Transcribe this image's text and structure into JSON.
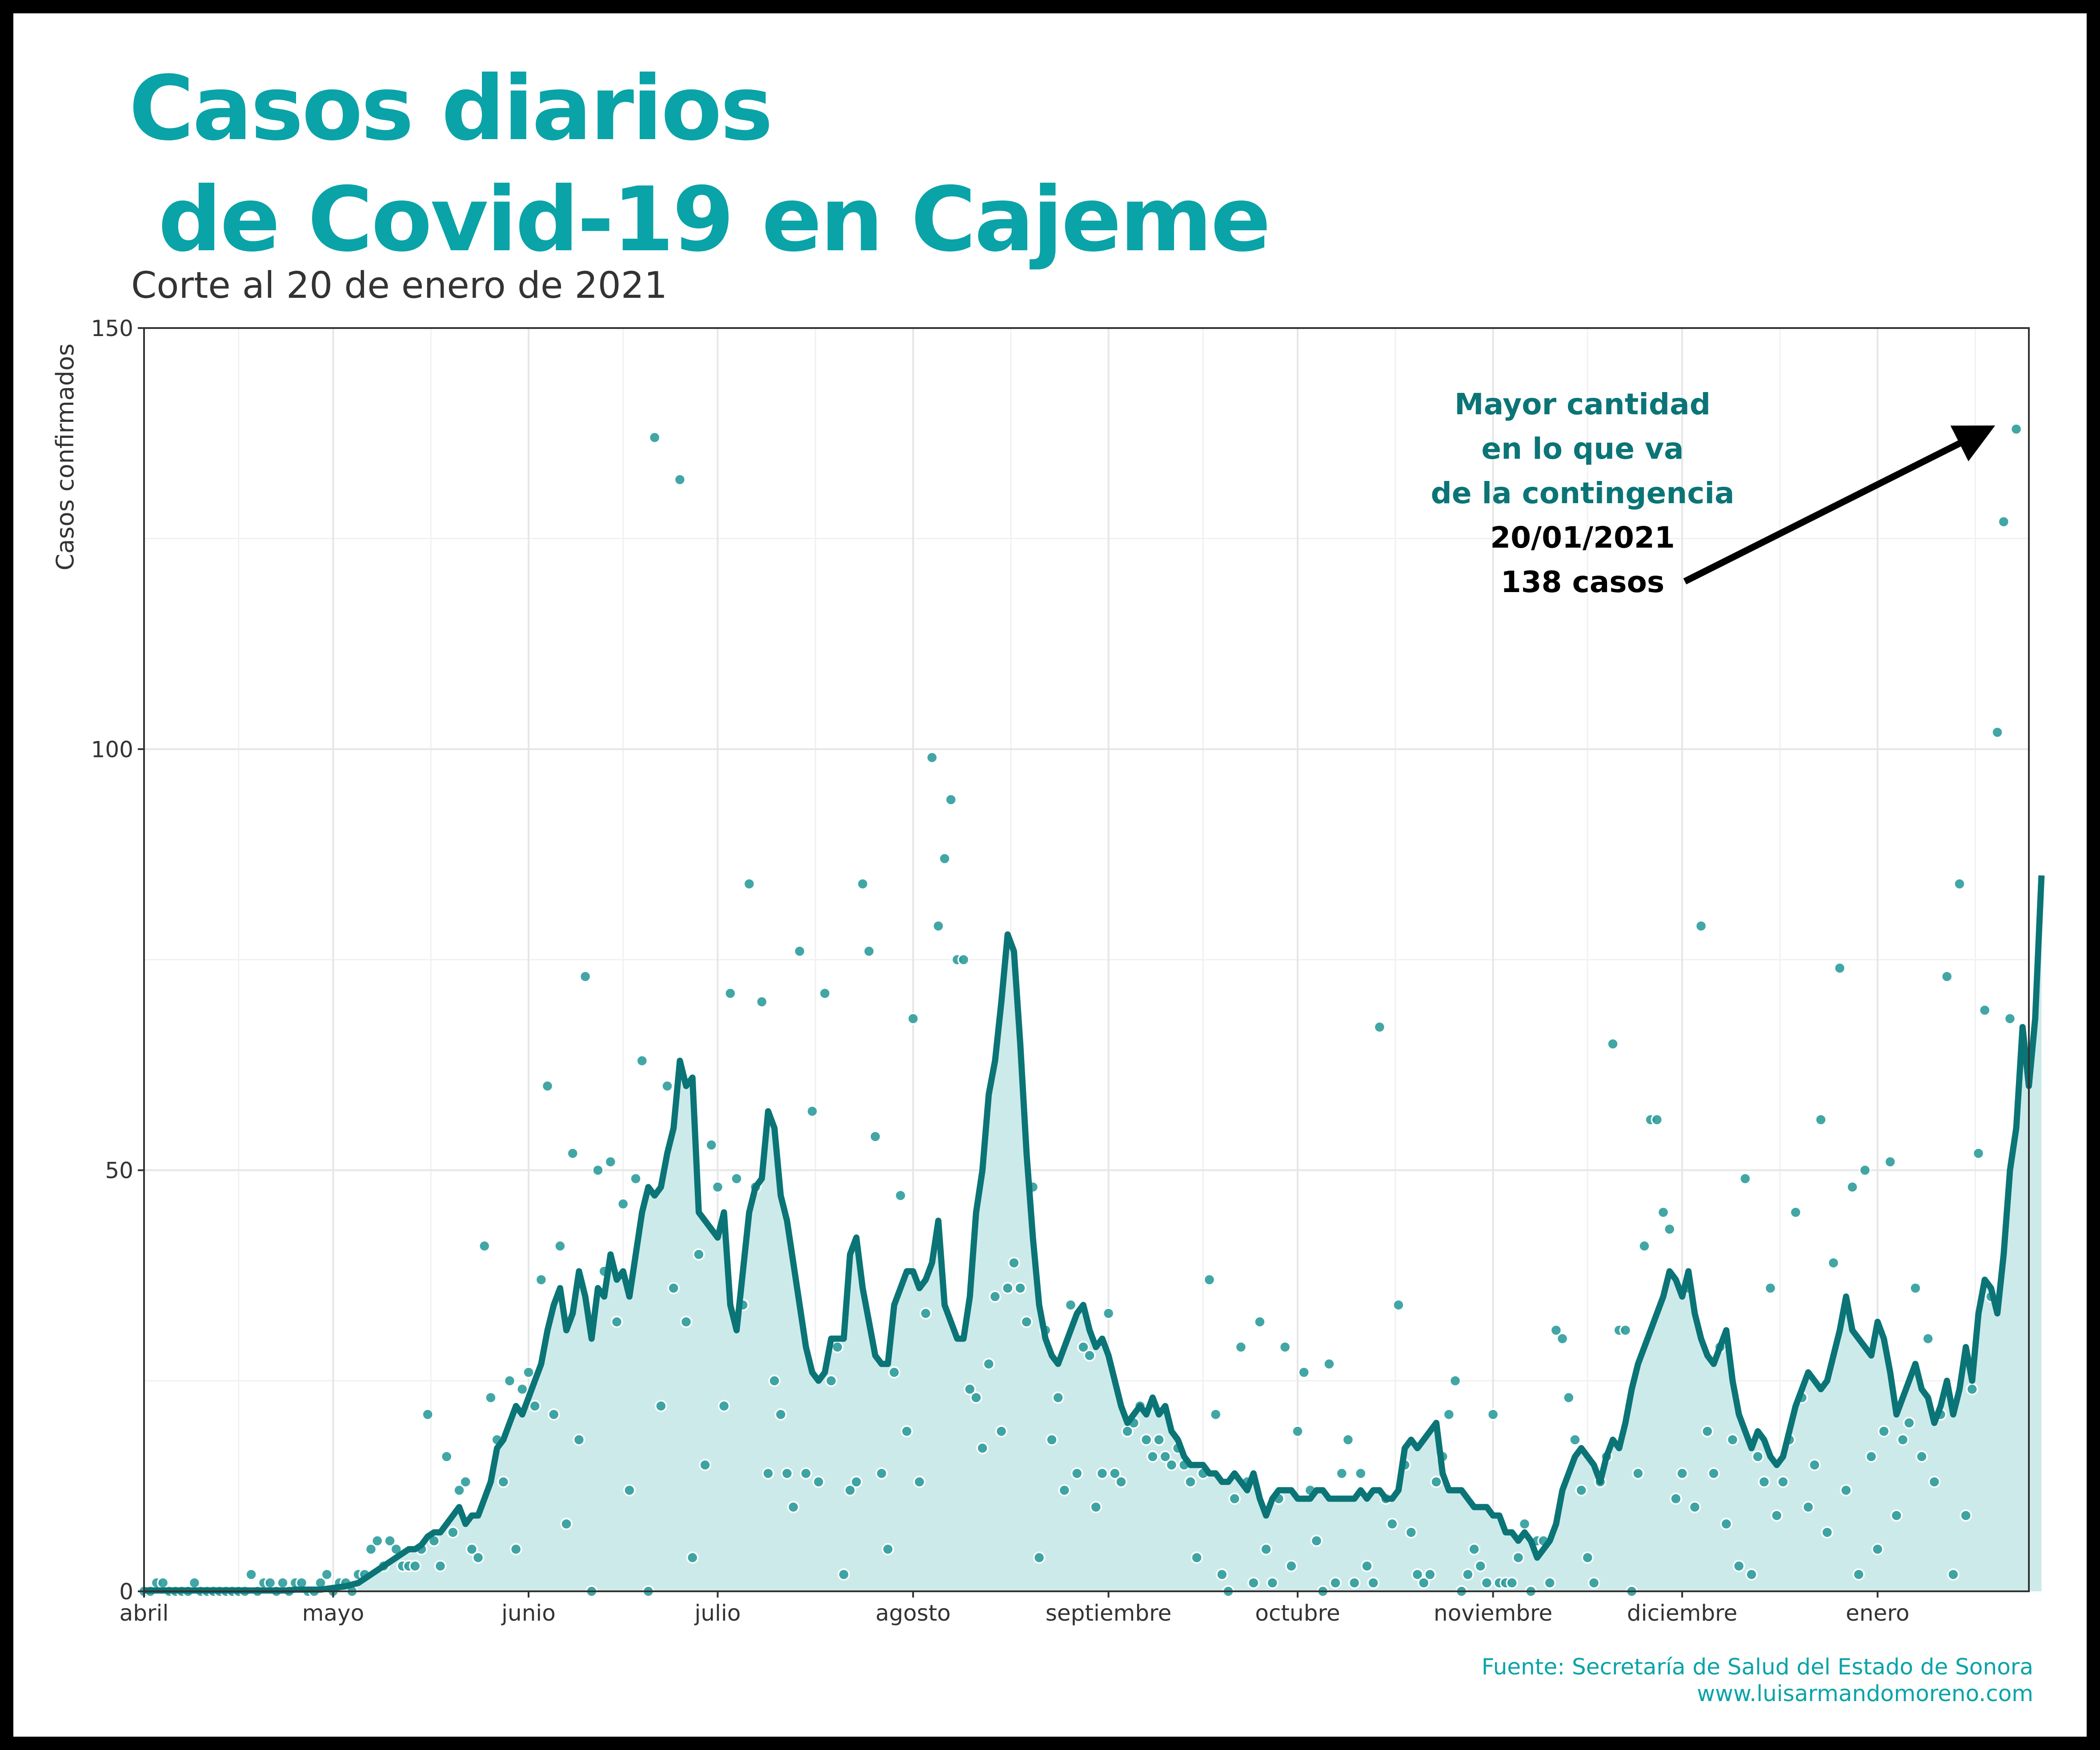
{
  "title": "Casos diarios\n de Covid-19 en Cajeme",
  "subtitle": "Corte al 20 de enero de 2021",
  "source": {
    "line1": "Fuente: Secretaría de Salud del Estado de Sonora",
    "line2": "www.luisarmandomoreno.com"
  },
  "colors": {
    "title": "#0aa3a8",
    "line": "#0b7476",
    "fill": "#cdeaea",
    "points": "#2e9c9c",
    "annotation_teal": "#0b7476",
    "annotation_black": "#000000"
  },
  "chart_data": {
    "type": "line",
    "title": "Casos diarios de Covid-19 en Cajeme",
    "xlabel": "",
    "ylabel": "Casos confirmados",
    "ylim": [
      0,
      150
    ],
    "yticks": [
      0,
      50,
      100,
      150
    ],
    "x_axis_type": "date",
    "xlim": [
      "2020-04-01",
      "2021-01-25"
    ],
    "xticks": [
      {
        "date": "2020-04-01",
        "label": "abril"
      },
      {
        "date": "2020-05-01",
        "label": "mayo"
      },
      {
        "date": "2020-06-01",
        "label": "junio"
      },
      {
        "date": "2020-07-01",
        "label": "julio"
      },
      {
        "date": "2020-08-01",
        "label": "agosto"
      },
      {
        "date": "2020-09-01",
        "label": "septiembre"
      },
      {
        "date": "2020-10-01",
        "label": "octubre"
      },
      {
        "date": "2020-11-01",
        "label": "noviembre"
      },
      {
        "date": "2020-12-01",
        "label": "diciembre"
      },
      {
        "date": "2021-01-01",
        "label": "enero"
      }
    ],
    "grid": true,
    "start_date": "2020-04-01",
    "series": [
      {
        "role": "daily_cases_points",
        "values": [
          0,
          0,
          1,
          1,
          0,
          0,
          0,
          0,
          1,
          0,
          0,
          0,
          0,
          0,
          0,
          0,
          0,
          2,
          0,
          1,
          1,
          0,
          1,
          0,
          1,
          1,
          0,
          0,
          1,
          2,
          0,
          1,
          1,
          0,
          2,
          2,
          5,
          6,
          3,
          6,
          5,
          3,
          3,
          3,
          5,
          21,
          6,
          3,
          16,
          7,
          12,
          13,
          5,
          4,
          41,
          23,
          18,
          13,
          25,
          5,
          24,
          26,
          22,
          37,
          60,
          21,
          41,
          8,
          52,
          18,
          73,
          0,
          50,
          38,
          51,
          32,
          46,
          12,
          49,
          63,
          0,
          137,
          22,
          60,
          36,
          132,
          32,
          4,
          40,
          15,
          53,
          48,
          22,
          71,
          49,
          34,
          84,
          48,
          70,
          14,
          25,
          21,
          14,
          10,
          76,
          14,
          57,
          13,
          71,
          25,
          29,
          2,
          12,
          13,
          84,
          76,
          54,
          14,
          5,
          26,
          47,
          19,
          68,
          13,
          33,
          99,
          79,
          87,
          94,
          75,
          75,
          24,
          23,
          17,
          27,
          35,
          19,
          36,
          39,
          36,
          32,
          48,
          4,
          31,
          18,
          23,
          12,
          34,
          14,
          29,
          28,
          10,
          14,
          33,
          14,
          13,
          19,
          20,
          22,
          18,
          16,
          18,
          16,
          15,
          17,
          15,
          13,
          4,
          14,
          37,
          21,
          2,
          0,
          11,
          29,
          13,
          1,
          32,
          5,
          1,
          11,
          29,
          3,
          19,
          26,
          12,
          6,
          0,
          27,
          1,
          14,
          18,
          1,
          14,
          3,
          1,
          67,
          11,
          8,
          34,
          15,
          7,
          2,
          1,
          2,
          13,
          16,
          21,
          25,
          0,
          2,
          5,
          3,
          1,
          21,
          1,
          1,
          1,
          4,
          8,
          0,
          6,
          6,
          1,
          31,
          30,
          23,
          18,
          12,
          4,
          1,
          13,
          16,
          65,
          31,
          31,
          0,
          14,
          41,
          56,
          56,
          45,
          43,
          11,
          14,
          36,
          10,
          79,
          19,
          14,
          29,
          8,
          18,
          3,
          49,
          2,
          16,
          13,
          36,
          9,
          13,
          18,
          45,
          23,
          10,
          15,
          56,
          7,
          39,
          74,
          12,
          48,
          2,
          50,
          16,
          5,
          19,
          51,
          9,
          18,
          20,
          36,
          16,
          30,
          13,
          21,
          73,
          2,
          84,
          9,
          24,
          52,
          69,
          35,
          102,
          127,
          68,
          138
        ]
      },
      {
        "role": "rolling_average",
        "values": [
          0.1,
          0.1,
          0.1,
          0.1,
          0.1,
          0.1,
          0.1,
          0.1,
          0.1,
          0.1,
          0.1,
          0.1,
          0.1,
          0.1,
          0.1,
          0.1,
          0.1,
          0.1,
          0.1,
          0.1,
          0.1,
          0.1,
          0.1,
          0.1,
          0.2,
          0.2,
          0.2,
          0.2,
          0.2,
          0.3,
          0.4,
          0.5,
          0.6,
          0.8,
          1,
          1.5,
          2,
          2.5,
          3,
          3.5,
          4,
          4.5,
          5,
          5,
          5.5,
          6.5,
          7,
          7,
          8,
          9,
          10,
          8,
          9,
          9,
          11,
          13,
          17,
          18,
          20,
          22,
          21,
          23,
          25,
          27,
          31,
          34,
          36,
          31,
          33,
          38,
          35,
          30,
          36,
          35,
          40,
          37,
          38,
          35,
          40,
          45,
          48,
          47,
          48,
          52,
          55,
          63,
          60,
          61,
          45,
          44,
          43,
          42,
          45,
          34,
          31,
          38,
          45,
          48,
          49,
          57,
          55,
          47,
          44,
          39,
          34,
          29,
          26,
          25,
          26,
          30,
          30,
          30,
          40,
          42,
          36,
          32,
          28,
          27,
          27,
          34,
          36,
          38,
          38,
          36,
          37,
          39,
          44,
          34,
          32,
          30,
          30,
          35,
          45,
          50,
          59,
          63,
          70,
          78,
          76,
          65,
          52,
          42,
          34,
          30,
          28,
          27,
          29,
          31,
          33,
          34,
          31,
          29,
          30,
          28,
          25,
          22,
          20,
          21,
          22,
          21,
          23,
          21,
          22,
          19,
          18,
          16,
          15,
          15,
          15,
          14,
          14,
          13,
          13,
          14,
          13,
          12,
          14,
          11,
          9,
          11,
          12,
          12,
          12,
          11,
          11,
          11,
          12,
          12,
          11,
          11,
          11,
          11,
          11,
          12,
          11,
          12,
          12,
          11,
          11,
          12,
          17,
          18,
          17,
          18,
          19,
          20,
          14,
          12,
          12,
          12,
          11,
          10,
          10,
          10,
          9,
          9,
          7,
          7,
          6,
          7,
          6,
          4,
          5,
          6,
          8,
          12,
          14,
          16,
          17,
          16,
          15,
          13,
          16,
          18,
          17,
          20,
          24,
          27,
          29,
          31,
          33,
          35,
          38,
          37,
          35,
          38,
          33,
          30,
          28,
          27,
          29,
          31,
          25,
          21,
          19,
          17,
          19,
          18,
          16,
          15,
          16,
          19,
          22,
          24,
          26,
          25,
          24,
          25,
          28,
          31,
          35,
          31,
          30,
          29,
          28,
          32,
          30,
          26,
          21,
          23,
          25,
          27,
          24,
          23,
          20,
          22,
          25,
          21,
          24,
          29,
          25,
          33,
          37,
          36,
          33,
          40,
          50,
          55,
          67,
          60,
          68,
          85
        ]
      }
    ],
    "annotation": {
      "teal_lines": [
        "Mayor cantidad",
        "en lo que va",
        "de la contingencia"
      ],
      "black_lines": [
        "20/01/2021",
        "138 casos"
      ],
      "target_date": "2021-01-20",
      "target_value": 138
    }
  }
}
